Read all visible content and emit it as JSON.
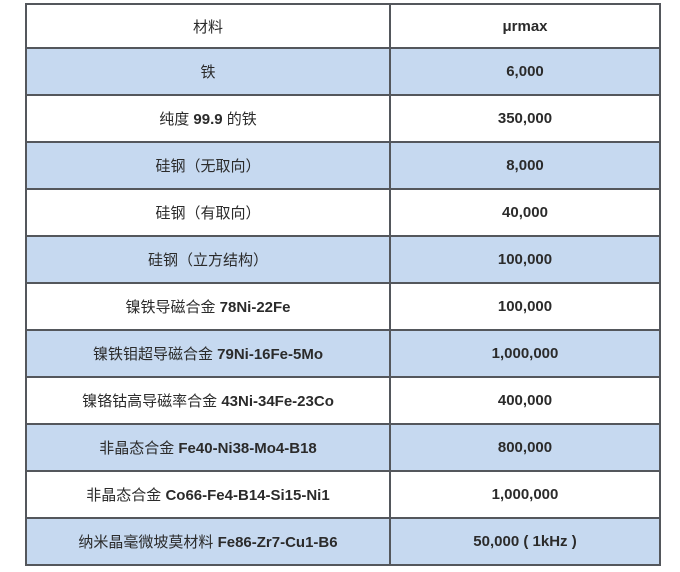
{
  "chart_data": {
    "type": "table",
    "columns": [
      "材料",
      "μrmax"
    ],
    "rows": [
      {
        "material": "铁",
        "material_pre": "铁",
        "material_strong": "",
        "material_post": "",
        "value": "6,000",
        "value_numeric": 6000,
        "shaded": true
      },
      {
        "material": "纯度 99.9 的铁",
        "material_pre": "纯度 ",
        "material_strong": "99.9",
        "material_post": " 的铁",
        "value": "350,000",
        "value_numeric": 350000,
        "shaded": false
      },
      {
        "material": "硅钢（无取向）",
        "material_pre": "硅钢（无取向）",
        "material_strong": "",
        "material_post": "",
        "value": "8,000",
        "value_numeric": 8000,
        "shaded": true
      },
      {
        "material": "硅钢（有取向）",
        "material_pre": "硅钢（有取向）",
        "material_strong": "",
        "material_post": "",
        "value": "40,000",
        "value_numeric": 40000,
        "shaded": false
      },
      {
        "material": "硅钢（立方结构）",
        "material_pre": "硅钢（立方结构）",
        "material_strong": "",
        "material_post": "",
        "value": "100,000",
        "value_numeric": 100000,
        "shaded": true
      },
      {
        "material": "镍铁导磁合金 78Ni-22Fe",
        "material_pre": "镍铁导磁合金 ",
        "material_strong": "78Ni-22Fe",
        "material_post": "",
        "value": "100,000",
        "value_numeric": 100000,
        "shaded": false
      },
      {
        "material": "镍铁钼超导磁合金 79Ni-16Fe-5Mo",
        "material_pre": "镍铁钼超导磁合金 ",
        "material_strong": "79Ni-16Fe-5Mo",
        "material_post": "",
        "value": "1,000,000",
        "value_numeric": 1000000,
        "shaded": true
      },
      {
        "material": "镍铬钴高导磁率合金 43Ni-34Fe-23Co",
        "material_pre": "镍铬钴高导磁率合金 ",
        "material_strong": "43Ni-34Fe-23Co",
        "material_post": "",
        "value": "400,000",
        "value_numeric": 400000,
        "shaded": false
      },
      {
        "material": "非晶态合金 Fe40-Ni38-Mo4-B18",
        "material_pre": "非晶态合金 ",
        "material_strong": "Fe40-Ni38-Mo4-B18",
        "material_post": "",
        "value": "800,000",
        "value_numeric": 800000,
        "shaded": true
      },
      {
        "material": "非晶态合金 Co66-Fe4-B14-Si15-Ni1",
        "material_pre": "非晶态合金 ",
        "material_strong": "Co66-Fe4-B14-Si15-Ni1",
        "material_post": "",
        "value": "1,000,000",
        "value_numeric": 1000000,
        "shaded": false
      },
      {
        "material": "纳米晶毫微坡莫材料 Fe86-Zr7-Cu1-B6",
        "material_pre": "纳米晶毫微坡莫材料 ",
        "material_strong": "Fe86-Zr7-Cu1-B6",
        "material_post": "",
        "value": "50,000 ( 1kHz )",
        "value_numeric": 50000,
        "value_note": "1kHz",
        "shaded": true
      }
    ],
    "legend": "none",
    "grid": "full-borders"
  },
  "colors": {
    "shaded_row": "#c6d9f0",
    "plain_row": "#ffffff",
    "border": "#54575c",
    "text": "#2b2b2b"
  }
}
